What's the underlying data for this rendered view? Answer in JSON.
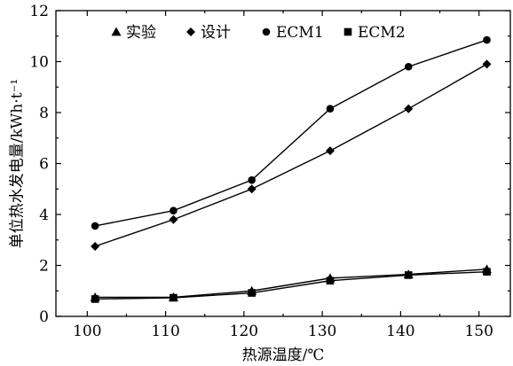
{
  "chart_data": {
    "type": "line",
    "xlabel": "热源温度/℃",
    "ylabel": "单位热水发电量/kWh·t⁻¹",
    "xlim": [
      96,
      154
    ],
    "ylim": [
      0,
      12
    ],
    "x_ticks": [
      100,
      110,
      120,
      130,
      140,
      150
    ],
    "y_ticks": [
      0,
      2,
      4,
      6,
      8,
      10,
      12
    ],
    "legend_position": "top-left",
    "grid": false,
    "series": [
      {
        "name": "实验",
        "marker": "triangle",
        "x": [
          101,
          111,
          121,
          131,
          141,
          151
        ],
        "y": [
          0.75,
          0.75,
          1.0,
          1.5,
          1.65,
          1.85
        ]
      },
      {
        "name": "设计",
        "marker": "diamond",
        "x": [
          101,
          111,
          121,
          131,
          141,
          151
        ],
        "y": [
          2.75,
          3.8,
          5.0,
          6.5,
          8.15,
          9.9
        ]
      },
      {
        "name": "ECM1",
        "marker": "circle",
        "x": [
          101,
          111,
          121,
          131,
          141,
          151
        ],
        "y": [
          3.55,
          4.15,
          5.35,
          8.15,
          9.8,
          10.85
        ]
      },
      {
        "name": "ECM2",
        "marker": "square",
        "x": [
          101,
          111,
          121,
          131,
          141,
          151
        ],
        "y": [
          0.68,
          0.73,
          0.92,
          1.4,
          1.62,
          1.75
        ]
      }
    ]
  }
}
